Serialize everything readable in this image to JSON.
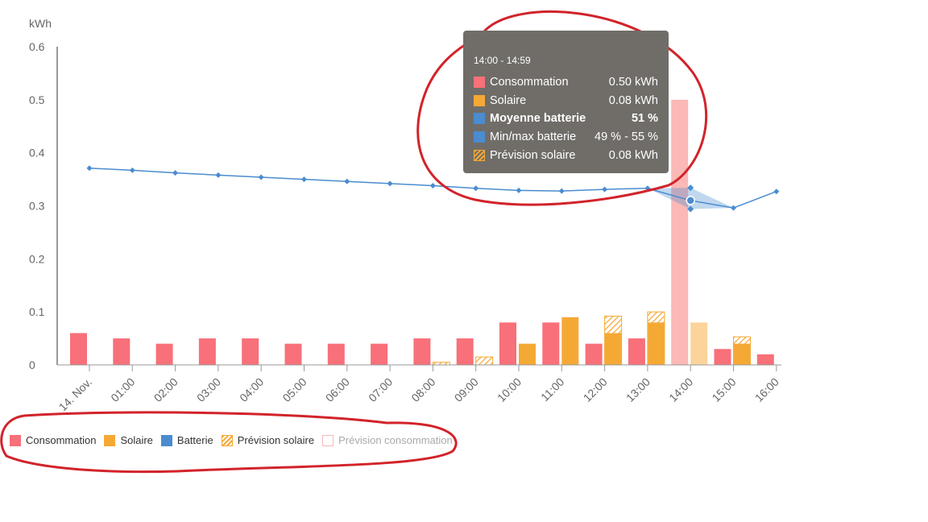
{
  "chart_data": {
    "type": "bar",
    "ylabel": "kWh",
    "ylim": [
      0,
      0.6
    ],
    "yticks": [
      "0",
      "0.1",
      "0.2",
      "0.3",
      "0.4",
      "0.5",
      "0.6"
    ],
    "categories": [
      "14. Nov.",
      "01:00",
      "02:00",
      "03:00",
      "04:00",
      "05:00",
      "06:00",
      "07:00",
      "08:00",
      "09:00",
      "10:00",
      "11:00",
      "12:00",
      "13:00",
      "14:00",
      "15:00",
      "16:00"
    ],
    "series": [
      {
        "name": "Consommation",
        "color": "#f87079",
        "values": [
          0.06,
          0.05,
          0.04,
          0.05,
          0.05,
          0.04,
          0.04,
          0.04,
          0.05,
          0.05,
          0.08,
          0.08,
          0.04,
          0.05,
          0.5,
          0.03,
          0.02
        ]
      },
      {
        "name": "Solaire",
        "color": "#f5a935",
        "values": [
          0,
          0,
          0,
          0,
          0,
          0,
          0,
          0,
          0,
          0,
          0.04,
          0.09,
          0.06,
          0.08,
          0.08,
          0.04,
          0
        ]
      },
      {
        "name": "Prévision solaire",
        "color": "#f5a935",
        "values": [
          0,
          0,
          0,
          0,
          0,
          0,
          0,
          0,
          0.005,
          0.015,
          0.04,
          0.09,
          0.092,
          0.1,
          0.08,
          0.053,
          0
        ]
      },
      {
        "name": "Batterie",
        "color": "#4a8ccf",
        "values": [
          0.371,
          0.367,
          0.362,
          0.358,
          0.354,
          0.35,
          0.346,
          0.342,
          0.338,
          0.333,
          0.329,
          0.328,
          0.331,
          0.333,
          0.31,
          0.296,
          0.327
        ]
      }
    ],
    "battery_range_min_max": [
      0.294,
      0.334
    ],
    "highlight_category": "14:00"
  },
  "tooltip": {
    "time": "14:00 - 14:59",
    "rows": [
      {
        "label": "Consommation",
        "value": "0.50 kWh",
        "color": "#f87079",
        "bold": false
      },
      {
        "label": "Solaire",
        "value": "0.08 kWh",
        "color": "#f5a935",
        "bold": false
      },
      {
        "label": "Moyenne batterie",
        "value": "51 %",
        "color": "#4a8ccf",
        "bold": true
      },
      {
        "label": "Min/max batterie",
        "value": "49 % - 55 %",
        "color": "#4a8ccf",
        "bold": false
      },
      {
        "label": "Prévision solaire",
        "value": "0.08 kWh",
        "color": "hatch",
        "bold": false
      }
    ]
  },
  "legend": [
    {
      "label": "Consommation",
      "color": "#f87079"
    },
    {
      "label": "Solaire",
      "color": "#f5a935"
    },
    {
      "label": "Batterie",
      "color": "#4a8ccf"
    },
    {
      "label": "Prévision solaire",
      "color": "hatch"
    },
    {
      "label": "Prévision consommation",
      "color": "hollow"
    }
  ],
  "annotation_color": "#d2232a"
}
